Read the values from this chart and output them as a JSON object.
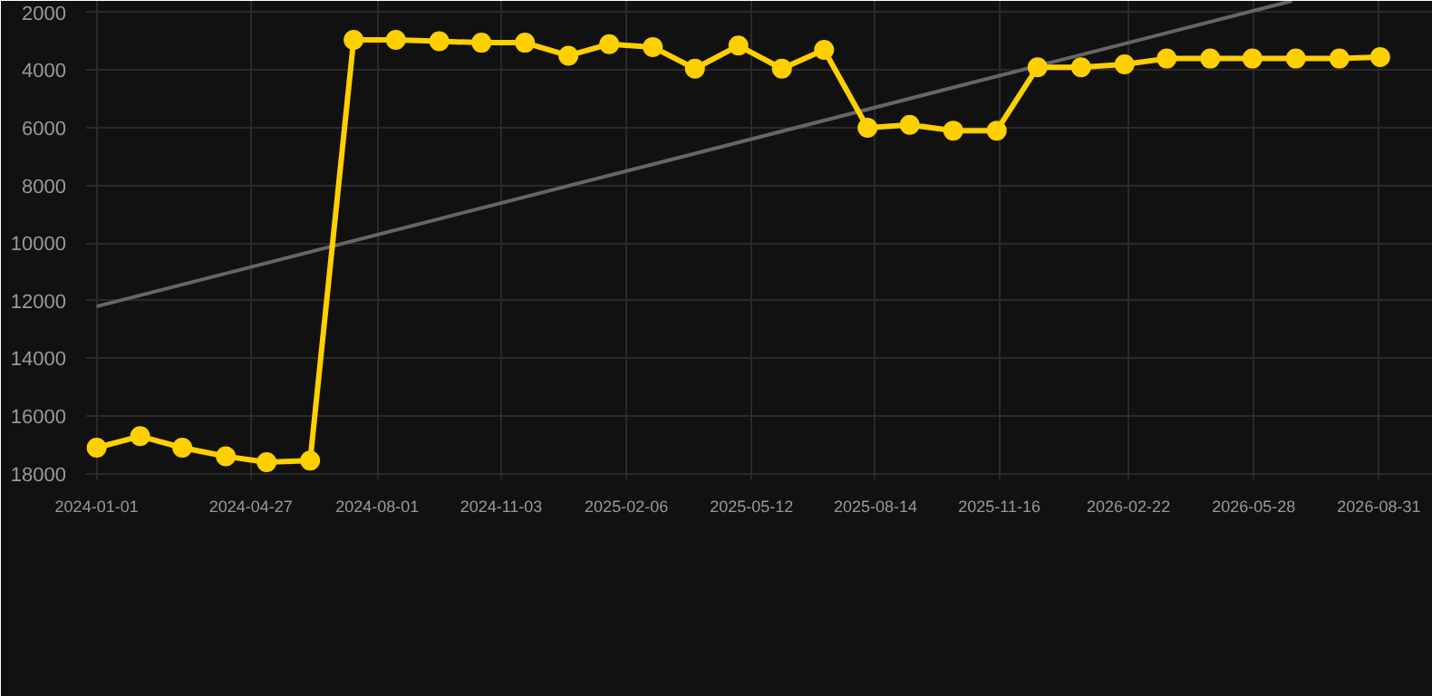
{
  "chart_data": {
    "type": "line",
    "x": [
      "2024-01-01",
      "2024-02-03",
      "2024-03-06",
      "2024-04-08",
      "2024-05-09",
      "2024-06-11",
      "2024-07-14",
      "2024-08-15",
      "2024-09-17",
      "2024-10-19",
      "2024-11-21",
      "2024-12-24",
      "2025-01-24",
      "2025-02-26",
      "2025-03-30",
      "2025-05-02",
      "2025-06-04",
      "2025-07-06",
      "2025-08-08",
      "2025-09-09",
      "2025-10-12",
      "2025-11-14",
      "2025-12-15",
      "2026-01-17",
      "2026-02-19",
      "2026-03-23",
      "2026-04-25",
      "2026-05-27",
      "2026-06-29",
      "2026-08-01",
      "2026-09-01"
    ],
    "series": [
      {
        "color": "#ffd000",
        "values": [
          17100,
          16700,
          17100,
          17400,
          17600,
          17550,
          2950,
          2950,
          3000,
          3050,
          3050,
          3500,
          3100,
          3200,
          3950,
          3150,
          3950,
          3300,
          6000,
          5900,
          6100,
          6100,
          3900,
          3900,
          3800,
          3600,
          3600,
          3600,
          3600,
          3600,
          3550
        ]
      },
      {
        "type": "line",
        "color": "#666666",
        "marker": "none",
        "x": [
          "2024-01-01",
          "2026-06-26"
        ],
        "values": [
          12200,
          1600
        ]
      }
    ],
    "marker": "circle",
    "line_style": "solid",
    "grid": true,
    "xlim": [
      "2023-12-24",
      "2026-10-11"
    ],
    "xticks": [
      {
        "value": "2024-01-01",
        "label": "2024-01-01"
      },
      {
        "value": "2024-04-27",
        "label": "2024-04-27"
      },
      {
        "value": "2024-08-01",
        "label": "2024-08-01"
      },
      {
        "value": "2024-11-03",
        "label": "2024-11-03"
      },
      {
        "value": "2025-02-06",
        "label": "2025-02-06"
      },
      {
        "value": "2025-05-12",
        "label": "2025-05-12"
      },
      {
        "value": "2025-08-14",
        "label": "2025-08-14"
      },
      {
        "value": "2025-11-16",
        "label": "2025-11-16"
      },
      {
        "value": "2026-02-22",
        "label": "2026-02-22"
      },
      {
        "value": "2026-05-28",
        "label": "2026-05-28"
      },
      {
        "value": "2026-08-31",
        "label": "2026-08-31"
      }
    ],
    "ylim": [
      18200,
      1600
    ],
    "yticks": [
      2000,
      4000,
      6000,
      8000,
      10000,
      12000,
      14000,
      16000,
      18000
    ]
  }
}
